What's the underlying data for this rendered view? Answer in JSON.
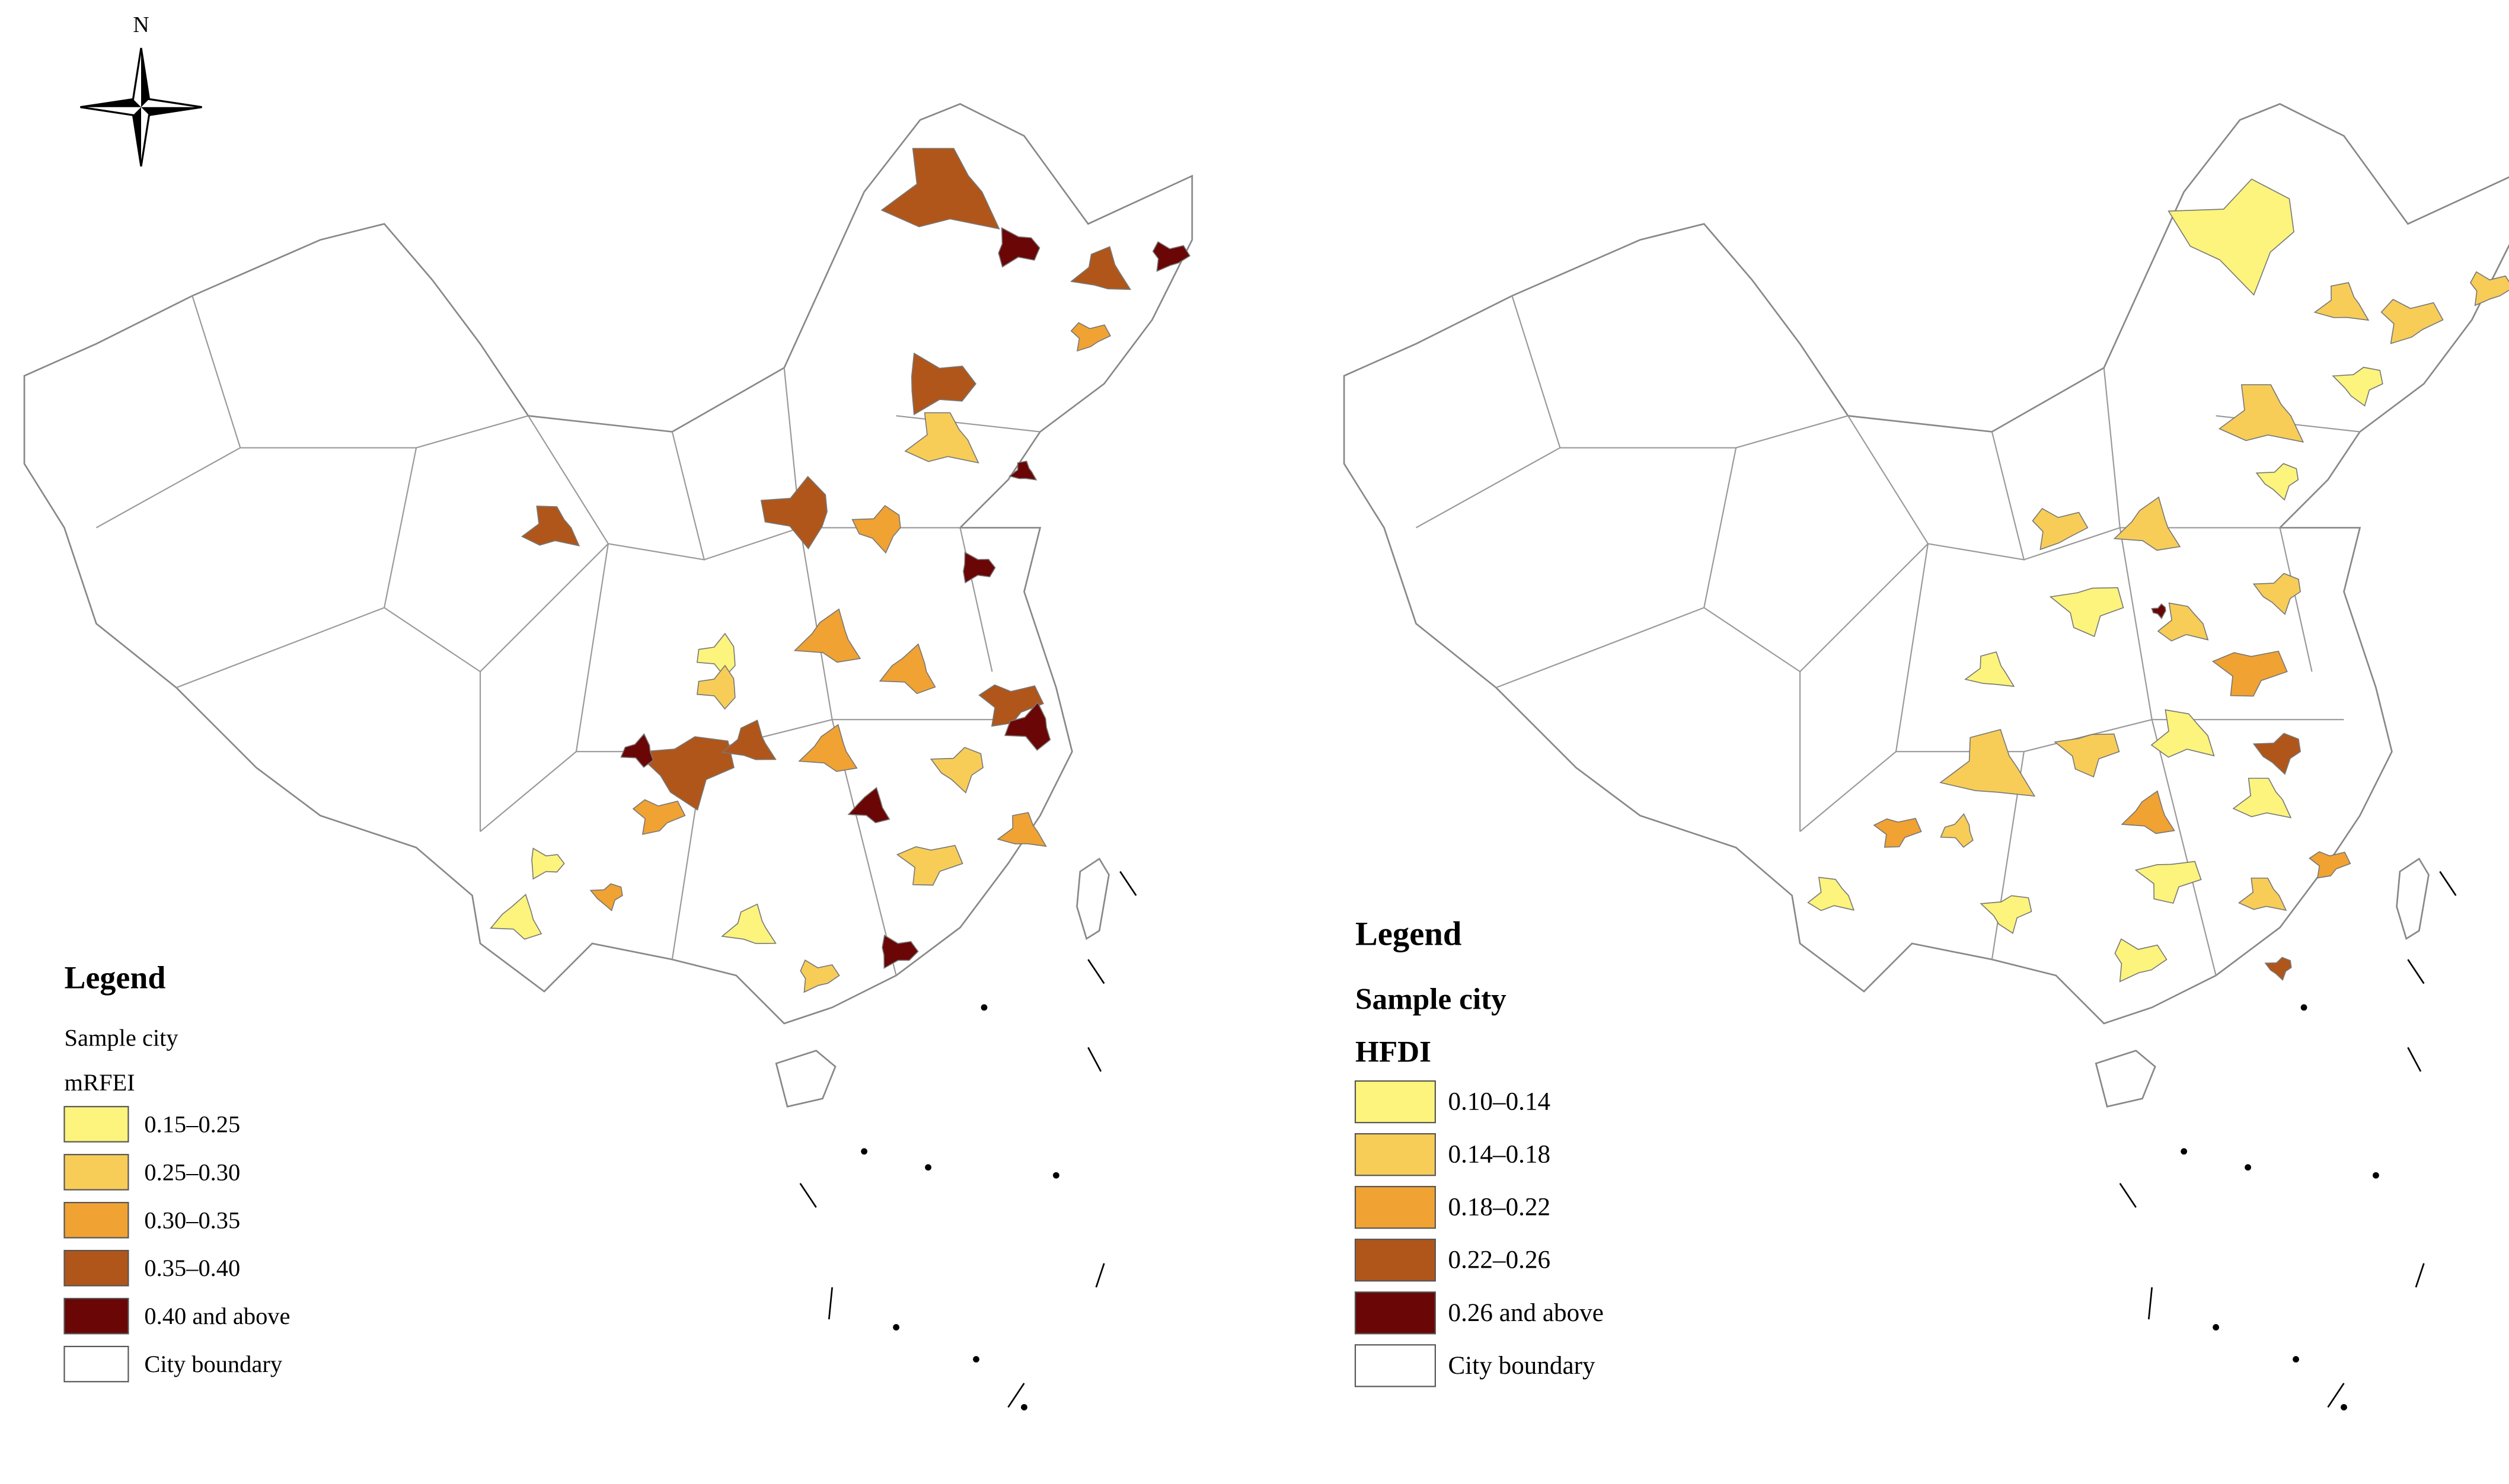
{
  "north_label": "N",
  "maps": [
    {
      "legend": {
        "title": "Legend",
        "subtitle": "Sample city",
        "variable": "mRFEI",
        "items": [
          {
            "label": "0.15–0.25",
            "color": "#fcf47c"
          },
          {
            "label": "0.25–0.30",
            "color": "#f7cd58"
          },
          {
            "label": "0.30–0.35",
            "color": "#f0a232"
          },
          {
            "label": "0.35–0.40",
            "color": "#b0561a"
          },
          {
            "label": "0.40 and above",
            "color": "#6a0606"
          }
        ],
        "boundary": "City boundary"
      }
    },
    {
      "legend": {
        "title": "Legend",
        "subtitle": "Sample city",
        "variable": "HFDI",
        "items": [
          {
            "label": "0.10–0.14",
            "color": "#fcf47c"
          },
          {
            "label": "0.14–0.18",
            "color": "#f7cd58"
          },
          {
            "label": "0.18–0.22",
            "color": "#f0a232"
          },
          {
            "label": "0.22–0.26",
            "color": "#b0561a"
          },
          {
            "label": "0.26 and above",
            "color": "#6a0606"
          }
        ],
        "boundary": "City boundary"
      }
    }
  ]
}
